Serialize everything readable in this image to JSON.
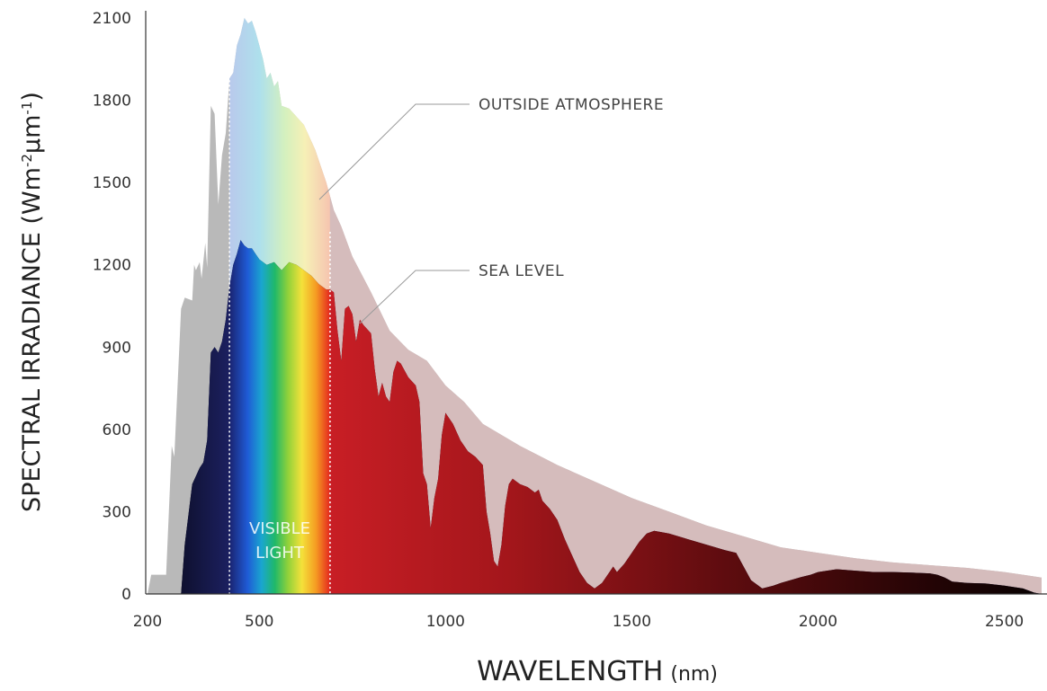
{
  "chart_data": {
    "type": "area",
    "xlabel": "WAVELENGTH",
    "xlabel_unit": "(nm)",
    "ylabel_main": "SPECTRAL IRRADIANCE (Wm",
    "ylabel_sup1": "-2",
    "ylabel_mid": "μm",
    "ylabel_sup2": "-1",
    "ylabel_end": ")",
    "xlim": [
      200,
      2600
    ],
    "ylim": [
      0,
      2100
    ],
    "x_ticks": [
      {
        "value": 200,
        "label": "200"
      },
      {
        "value": 500,
        "label": "500"
      },
      {
        "value": 1000,
        "label": "1000"
      },
      {
        "value": 1500,
        "label": "1500"
      },
      {
        "value": 2000,
        "label": "2000"
      },
      {
        "value": 2500,
        "label": "2500"
      }
    ],
    "y_ticks": [
      {
        "value": 0,
        "label": "0"
      },
      {
        "value": 300,
        "label": "300"
      },
      {
        "value": 600,
        "label": "600"
      },
      {
        "value": 900,
        "label": "900"
      },
      {
        "value": 1200,
        "label": "1200"
      },
      {
        "value": 1500,
        "label": "1500"
      },
      {
        "value": 1800,
        "label": "1800"
      },
      {
        "value": 2100,
        "label": "2100"
      }
    ],
    "grid": false,
    "annotations": {
      "outside": "OUTSIDE ATMOSPHERE",
      "sea": "SEA LEVEL",
      "visible_line1": "VISIBLE",
      "visible_line2": "LIGHT"
    },
    "visible_range": [
      420,
      690
    ],
    "series": [
      {
        "name": "OUTSIDE ATMOSPHERE",
        "points": [
          [
            200,
            0
          ],
          [
            210,
            70
          ],
          [
            250,
            70
          ],
          [
            265,
            540
          ],
          [
            272,
            500
          ],
          [
            290,
            1040
          ],
          [
            300,
            1080
          ],
          [
            320,
            1070
          ],
          [
            325,
            1200
          ],
          [
            330,
            1180
          ],
          [
            340,
            1210
          ],
          [
            345,
            1150
          ],
          [
            355,
            1280
          ],
          [
            360,
            1190
          ],
          [
            370,
            1780
          ],
          [
            380,
            1750
          ],
          [
            390,
            1420
          ],
          [
            400,
            1600
          ],
          [
            410,
            1680
          ],
          [
            420,
            1880
          ],
          [
            430,
            1900
          ],
          [
            440,
            2000
          ],
          [
            450,
            2040
          ],
          [
            460,
            2100
          ],
          [
            470,
            2080
          ],
          [
            480,
            2090
          ],
          [
            490,
            2050
          ],
          [
            500,
            2000
          ],
          [
            510,
            1950
          ],
          [
            520,
            1880
          ],
          [
            530,
            1900
          ],
          [
            540,
            1850
          ],
          [
            550,
            1870
          ],
          [
            560,
            1780
          ],
          [
            580,
            1770
          ],
          [
            600,
            1740
          ],
          [
            620,
            1710
          ],
          [
            650,
            1620
          ],
          [
            680,
            1500
          ],
          [
            700,
            1400
          ],
          [
            720,
            1340
          ],
          [
            750,
            1230
          ],
          [
            800,
            1100
          ],
          [
            850,
            960
          ],
          [
            900,
            890
          ],
          [
            950,
            850
          ],
          [
            1000,
            760
          ],
          [
            1050,
            700
          ],
          [
            1100,
            620
          ],
          [
            1200,
            540
          ],
          [
            1300,
            470
          ],
          [
            1400,
            410
          ],
          [
            1500,
            350
          ],
          [
            1600,
            300
          ],
          [
            1700,
            250
          ],
          [
            1800,
            210
          ],
          [
            1900,
            170
          ],
          [
            2000,
            150
          ],
          [
            2100,
            130
          ],
          [
            2200,
            115
          ],
          [
            2300,
            105
          ],
          [
            2400,
            95
          ],
          [
            2500,
            80
          ],
          [
            2600,
            60
          ],
          [
            2600,
            0
          ]
        ]
      },
      {
        "name": "SEA LEVEL",
        "points": [
          [
            290,
            0
          ],
          [
            300,
            180
          ],
          [
            320,
            400
          ],
          [
            340,
            460
          ],
          [
            350,
            480
          ],
          [
            360,
            560
          ],
          [
            370,
            880
          ],
          [
            380,
            900
          ],
          [
            390,
            880
          ],
          [
            400,
            920
          ],
          [
            410,
            1000
          ],
          [
            420,
            1120
          ],
          [
            430,
            1200
          ],
          [
            440,
            1240
          ],
          [
            450,
            1290
          ],
          [
            460,
            1270
          ],
          [
            470,
            1260
          ],
          [
            480,
            1260
          ],
          [
            490,
            1240
          ],
          [
            500,
            1220
          ],
          [
            520,
            1200
          ],
          [
            540,
            1210
          ],
          [
            560,
            1180
          ],
          [
            580,
            1210
          ],
          [
            600,
            1200
          ],
          [
            620,
            1180
          ],
          [
            640,
            1160
          ],
          [
            660,
            1130
          ],
          [
            680,
            1110
          ],
          [
            690,
            1110
          ],
          [
            700,
            1100
          ],
          [
            710,
            960
          ],
          [
            720,
            850
          ],
          [
            730,
            1040
          ],
          [
            740,
            1050
          ],
          [
            750,
            1020
          ],
          [
            760,
            920
          ],
          [
            770,
            1000
          ],
          [
            780,
            980
          ],
          [
            800,
            950
          ],
          [
            810,
            820
          ],
          [
            820,
            720
          ],
          [
            830,
            770
          ],
          [
            840,
            720
          ],
          [
            850,
            700
          ],
          [
            860,
            810
          ],
          [
            870,
            850
          ],
          [
            880,
            840
          ],
          [
            900,
            790
          ],
          [
            920,
            760
          ],
          [
            930,
            700
          ],
          [
            940,
            440
          ],
          [
            950,
            400
          ],
          [
            960,
            240
          ],
          [
            970,
            350
          ],
          [
            980,
            420
          ],
          [
            990,
            580
          ],
          [
            1000,
            660
          ],
          [
            1020,
            620
          ],
          [
            1040,
            560
          ],
          [
            1060,
            520
          ],
          [
            1080,
            500
          ],
          [
            1100,
            470
          ],
          [
            1110,
            300
          ],
          [
            1120,
            220
          ],
          [
            1130,
            120
          ],
          [
            1140,
            100
          ],
          [
            1150,
            180
          ],
          [
            1160,
            320
          ],
          [
            1170,
            400
          ],
          [
            1180,
            420
          ],
          [
            1200,
            400
          ],
          [
            1220,
            390
          ],
          [
            1240,
            370
          ],
          [
            1250,
            380
          ],
          [
            1260,
            340
          ],
          [
            1280,
            310
          ],
          [
            1300,
            270
          ],
          [
            1320,
            200
          ],
          [
            1340,
            140
          ],
          [
            1360,
            80
          ],
          [
            1380,
            40
          ],
          [
            1400,
            20
          ],
          [
            1420,
            40
          ],
          [
            1440,
            80
          ],
          [
            1450,
            100
          ],
          [
            1460,
            80
          ],
          [
            1480,
            110
          ],
          [
            1500,
            150
          ],
          [
            1520,
            190
          ],
          [
            1540,
            220
          ],
          [
            1560,
            230
          ],
          [
            1600,
            220
          ],
          [
            1650,
            200
          ],
          [
            1700,
            180
          ],
          [
            1750,
            160
          ],
          [
            1780,
            150
          ],
          [
            1800,
            100
          ],
          [
            1820,
            50
          ],
          [
            1850,
            20
          ],
          [
            1880,
            30
          ],
          [
            1900,
            40
          ],
          [
            1950,
            60
          ],
          [
            1980,
            70
          ],
          [
            2000,
            80
          ],
          [
            2050,
            90
          ],
          [
            2100,
            85
          ],
          [
            2150,
            80
          ],
          [
            2200,
            80
          ],
          [
            2250,
            78
          ],
          [
            2300,
            75
          ],
          [
            2320,
            70
          ],
          [
            2340,
            60
          ],
          [
            2360,
            45
          ],
          [
            2400,
            40
          ],
          [
            2450,
            38
          ],
          [
            2500,
            30
          ],
          [
            2550,
            20
          ],
          [
            2580,
            5
          ],
          [
            2600,
            0
          ]
        ]
      }
    ]
  }
}
